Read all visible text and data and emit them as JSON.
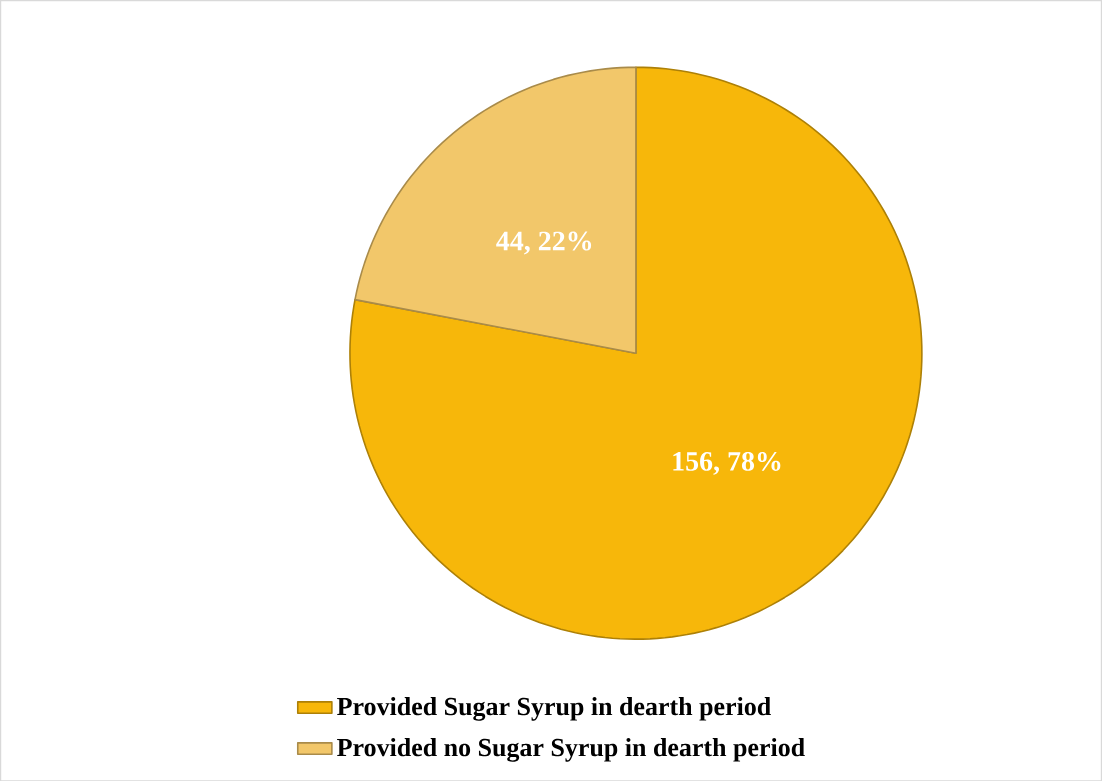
{
  "chart_data": {
    "type": "pie",
    "categories": [
      "Provided Sugar Syrup in dearth period",
      "Provided no Sugar Syrup in dearth period"
    ],
    "values": [
      156,
      44
    ],
    "colors": [
      "#f7b70a",
      "#f2c76a"
    ],
    "value_labels": [
      "156, 78%",
      "44, 22%"
    ],
    "legend": "bottom"
  }
}
